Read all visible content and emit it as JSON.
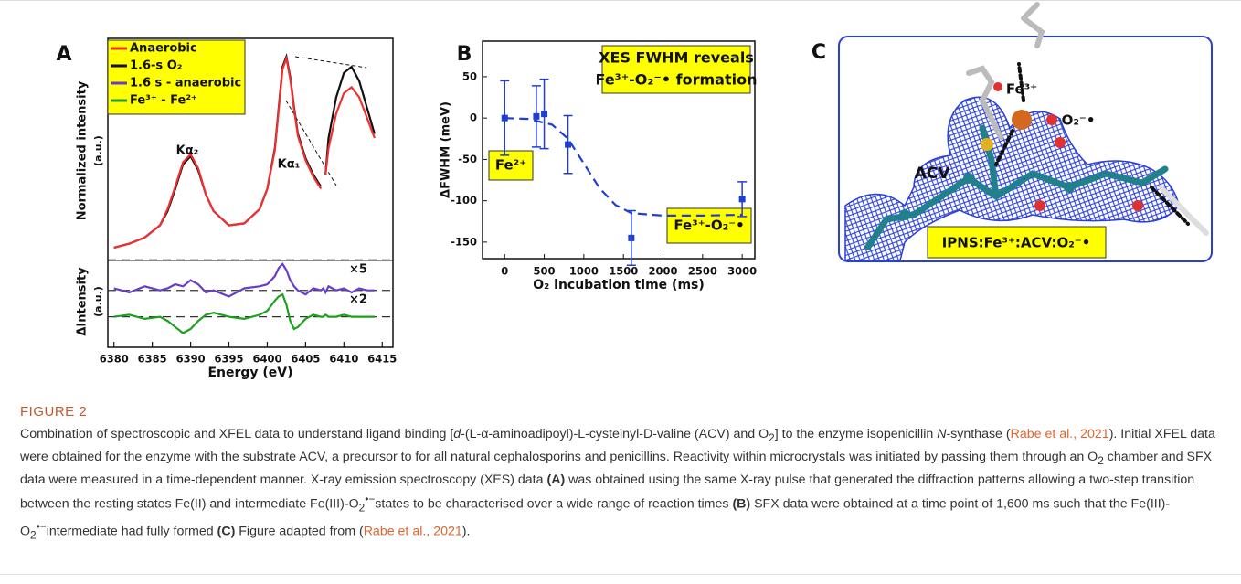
{
  "chart_data": [
    {
      "type": "line",
      "panel_label": "A",
      "xlabel": "Energy (eV)",
      "ylabels": [
        "Normalized intensity",
        "(a.u.)",
        "ΔIntensity",
        "(a.u.)"
      ],
      "xlim": [
        6379.2,
        6416.4
      ],
      "ylim": [
        -43,
        109
      ],
      "xticks": [
        6380,
        6385,
        6390,
        6395,
        6400,
        6405,
        6410,
        6415
      ],
      "reference_lines": [
        0,
        -15,
        -28
      ],
      "x": [
        6380,
        6382,
        6384,
        6386,
        6387,
        6388,
        6389,
        6390,
        6391,
        6392,
        6393,
        6395,
        6397,
        6399,
        6400,
        6401,
        6401.5,
        6402,
        6402.5,
        6403,
        6403.5,
        6404,
        6405,
        6406,
        6407,
        6407.3,
        6407.6,
        6408,
        6409,
        6410,
        6411,
        6412,
        6413,
        6414
      ],
      "series": [
        {
          "name": "Anaerobic",
          "color": "#f03030",
          "values": [
            6,
            8,
            11,
            17,
            25,
            36,
            48,
            52,
            45,
            32,
            24,
            17,
            18,
            25,
            35,
            54,
            74,
            94,
            99,
            89,
            74,
            61,
            49,
            41,
            35,
            null,
            42,
            55,
            72,
            82,
            85,
            80,
            70,
            60
          ]
        },
        {
          "name": "1.6-s O₂",
          "color": "#111111",
          "values": [
            6,
            8,
            11,
            17,
            24,
            35,
            47,
            51,
            44,
            32,
            24,
            17,
            18,
            25,
            35,
            55,
            75,
            95,
            100,
            90,
            75,
            62,
            50,
            42,
            36,
            null,
            42,
            60,
            80,
            92,
            95,
            88,
            75,
            62
          ]
        },
        {
          "name": "1.6 s - anaerobic",
          "color": "#6a3dc8",
          "values": [
            -14,
            -16,
            -13,
            -15,
            -14,
            -12,
            -13,
            -10,
            -12,
            -16,
            -15,
            -18,
            -14,
            -13,
            -12,
            -8,
            -4,
            -2,
            -5,
            -10,
            -13,
            -15,
            -17,
            -14,
            -15,
            -14,
            -16,
            -13,
            -15,
            -14,
            -16,
            -14,
            -15,
            -15
          ]
        },
        {
          "name": "Fe³⁺ - Fe²⁺",
          "color": "#1ea01e",
          "values": [
            -28,
            -27,
            -29,
            -28,
            -30,
            -33,
            -36,
            -34,
            -30,
            -27,
            -26,
            -28,
            -29,
            -27,
            -25,
            -20,
            -18,
            -17,
            -22,
            -30,
            -34,
            -33,
            -29,
            -27,
            -28,
            -28,
            -27,
            -28,
            -28,
            -27,
            -28,
            -28,
            -28,
            -28
          ]
        }
      ],
      "annotations": [
        "Kα₂",
        "Kα₁",
        "×5",
        "×2"
      ]
    },
    {
      "type": "scatter",
      "panel_label": "B",
      "xlabel": "O₂ incubation time (ms)",
      "ylabel": "ΔFWHM (meV)",
      "xlim": [
        -280,
        3160
      ],
      "ylim": [
        -170,
        93
      ],
      "xticks": [
        0,
        500,
        1000,
        1500,
        2000,
        2500,
        3000
      ],
      "yticks": [
        50,
        0,
        -50,
        -100,
        -150
      ],
      "color": "#1f3fd0",
      "x": [
        0,
        400,
        500,
        800,
        1600,
        3000
      ],
      "values": [
        0,
        2,
        5,
        -32,
        -145,
        -98
      ],
      "errors": [
        45,
        37,
        42,
        35,
        33,
        21
      ],
      "fit": {
        "x": [
          0,
          300,
          600,
          800,
          1000,
          1200,
          1400,
          1600,
          2000,
          2500,
          3000
        ],
        "values": [
          0,
          -1,
          -8,
          -25,
          -55,
          -85,
          -105,
          -115,
          -118,
          -118,
          -117
        ]
      },
      "annotations": [
        "XES FWHM reveals",
        "Fe³⁺-O₂⁻• formation",
        "Fe²⁺",
        "Fe³⁺-O₂⁻•"
      ]
    }
  ],
  "structure": {
    "panel_label": "C",
    "labels": [
      "Fe³⁺",
      "O₂⁻•",
      "ACV",
      "IPNS:Fe³⁺:ACV:O₂⁻•"
    ]
  },
  "caption": {
    "label": "FIGURE 2",
    "segments": [
      "Combination of spectroscopic and XFEL data to understand ligand binding [",
      "d",
      "-(L-α-aminoadipoyl)-L-cysteinyl-D-valine (ACV) and O",
      "2",
      "] to the enzyme isopenicillin ",
      "N",
      "-synthase (",
      "Rabe et al., 2021",
      "). Initial XFEL data were obtained for the enzyme with the substrate ACV, a precursor to for all natural cephalosporins and penicillins. Reactivity within microcrystals was initiated by passing them through an O",
      "2",
      " chamber and SFX data were measured in a time-dependent manner. X-ray emission spectroscopy (XES) data ",
      "(A)",
      " was obtained using the same X-ray pulse that generated the diffraction patterns allowing a two-step transition between the resting states Fe(II) and intermediate Fe(III)-O",
      "2",
      "•−",
      "states to be characterised over a wide range of reaction times ",
      "(B)",
      " SFX data were obtained at a time point of 1,600 ms such that the Fe(III)-O",
      "2",
      "•−",
      "intermediate had fully formed ",
      "(C)",
      " Figure adapted from (",
      "Rabe et al., 2021",
      ")."
    ]
  }
}
